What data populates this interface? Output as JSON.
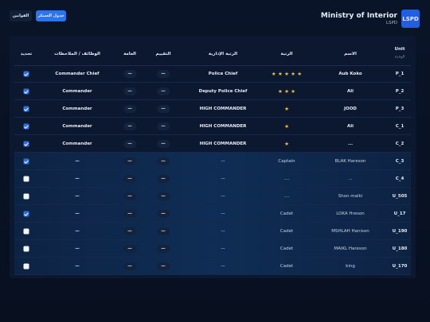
{
  "header": {
    "title": "Ministry of Interior",
    "subtitle": "LSPD",
    "logo": "LSPD",
    "buttons": [
      "جدول العسكر",
      "القوانين"
    ]
  },
  "table": {
    "columns": [
      {
        "label": "Unit",
        "sub": "الوحدة"
      },
      {
        "label": "الاسم"
      },
      {
        "label": "الرتبة"
      },
      {
        "label": "الرتبة الإدارية"
      },
      {
        "label": "التقييم"
      },
      {
        "label": "العامة"
      },
      {
        "label": "الوظائف / الملاحظات"
      },
      {
        "label": "تحديد"
      }
    ],
    "rows": [
      {
        "cells": [
          "P_1",
          "Aub Koko",
          "★ ★ ★ ★ ★",
          "Police Chief",
          "—",
          "—",
          "Commander Chief"
        ],
        "checked": true
      },
      {
        "cells": [
          "P_2",
          "Ali",
          "★ ★ ★",
          "Deputy Police Chief",
          "—",
          "—",
          "Commander"
        ],
        "checked": true
      },
      {
        "cells": [
          "P_3",
          "JOOD",
          "★",
          "HIGH COMMANDER",
          "—",
          "—",
          "Commander"
        ],
        "checked": true
      },
      {
        "cells": [
          "C_1",
          "Ali",
          "★",
          "HIGH COMMANDER",
          "—",
          "—",
          "Commander"
        ],
        "checked": true
      },
      {
        "cells": [
          "C_2",
          "...",
          "★",
          "HIGH COMMANDER",
          "—",
          "—",
          "Commander"
        ],
        "checked": true
      },
      {
        "cells": [
          "C_3",
          "BLAK Hareson",
          "Captain",
          "—",
          "—",
          "—",
          "—"
        ],
        "checked": true
      },
      {
        "cells": [
          "C_4",
          "...",
          "....",
          "—",
          "—",
          "—",
          "—"
        ],
        "checked": false
      },
      {
        "cells": [
          "U_505",
          "Shon malki",
          "....",
          "—",
          "—",
          "—",
          "—"
        ],
        "checked": false
      },
      {
        "cells": [
          "U_17",
          "LOKA Hreson",
          "Cadet",
          "—",
          "—",
          "—",
          "—"
        ],
        "checked": true
      },
      {
        "cells": [
          "U_190",
          "MSHLAH Hanison",
          "Cadet",
          "—",
          "—",
          "—",
          "—"
        ],
        "checked": false
      },
      {
        "cells": [
          "U_180",
          "MAIKL Hareson",
          "Cadet",
          "—",
          "—",
          "—",
          "—"
        ],
        "checked": false
      },
      {
        "cells": [
          "U_170",
          "king",
          "Cadet",
          "—",
          "—",
          "—",
          "—"
        ],
        "checked": false
      }
    ]
  }
}
